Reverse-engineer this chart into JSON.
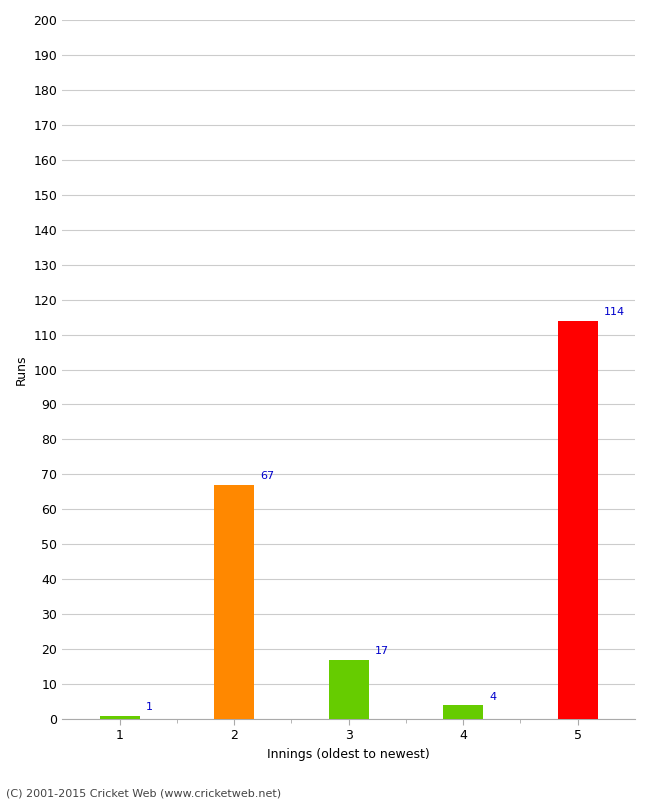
{
  "categories": [
    1,
    2,
    3,
    4,
    5
  ],
  "values": [
    1,
    67,
    17,
    4,
    114
  ],
  "bar_colors": [
    "#66cc00",
    "#ff8800",
    "#66cc00",
    "#66cc00",
    "#ff0000"
  ],
  "xlabel": "Innings (oldest to newest)",
  "ylabel": "Runs",
  "ylim": [
    0,
    200
  ],
  "yticks": [
    0,
    10,
    20,
    30,
    40,
    50,
    60,
    70,
    80,
    90,
    100,
    110,
    120,
    130,
    140,
    150,
    160,
    170,
    180,
    190,
    200
  ],
  "value_color": "#0000cc",
  "value_fontsize": 8,
  "footer": "(C) 2001-2015 Cricket Web (www.cricketweb.net)",
  "background_color": "#ffffff",
  "grid_color": "#cccccc",
  "bar_width": 0.35
}
